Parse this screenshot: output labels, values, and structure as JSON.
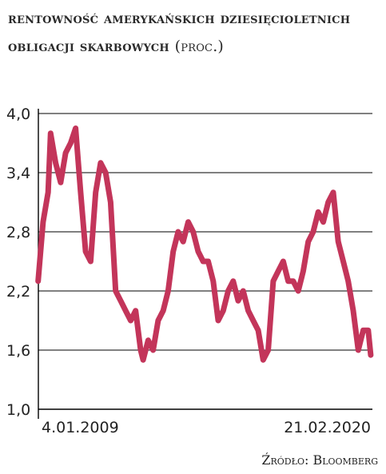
{
  "title_main": "Rentowność amerykańskich dziesięcioletnich obligacji skarbowych",
  "title_unit": "(proc.)",
  "source": "Źródło: Bloomberg",
  "colors": {
    "line": "#c3355a",
    "grid": "#000000",
    "text": "#222222"
  },
  "chart_data": {
    "type": "line",
    "title": "Rentowność amerykańskich dziesięcioletnich obligacji skarbowych (proc.)",
    "xlabel": "",
    "ylabel": "",
    "ylim": [
      1.0,
      4.0
    ],
    "yticks": [
      "4,0",
      "3,4",
      "2,8",
      "2,2",
      "1,6",
      "1,0"
    ],
    "xlim": [
      "2009-01-04",
      "2020-02-21"
    ],
    "xticks": [
      "4.01.2009",
      "21.02.2020"
    ],
    "grid": "horizontal",
    "legend": "none",
    "series": [
      {
        "x": [
          "2009-01",
          "2009-03",
          "2009-05",
          "2009-06",
          "2009-08",
          "2009-10",
          "2009-12",
          "2010-02",
          "2010-04",
          "2010-06",
          "2010-08",
          "2010-10",
          "2010-12",
          "2011-02",
          "2011-04",
          "2011-06",
          "2011-08",
          "2011-10",
          "2011-12",
          "2012-02",
          "2012-04",
          "2012-06",
          "2012-07",
          "2012-09",
          "2012-11",
          "2013-01",
          "2013-03",
          "2013-05",
          "2013-07",
          "2013-09",
          "2013-11",
          "2014-01",
          "2014-03",
          "2014-05",
          "2014-07",
          "2014-09",
          "2014-11",
          "2015-01",
          "2015-03",
          "2015-05",
          "2015-07",
          "2015-09",
          "2015-11",
          "2016-01",
          "2016-03",
          "2016-05",
          "2016-07",
          "2016-09",
          "2016-11",
          "2017-01",
          "2017-03",
          "2017-05",
          "2017-07",
          "2017-09",
          "2017-11",
          "2018-01",
          "2018-03",
          "2018-05",
          "2018-07",
          "2018-09",
          "2018-11",
          "2019-01",
          "2019-03",
          "2019-05",
          "2019-07",
          "2019-09",
          "2019-11",
          "2020-01",
          "2020-02"
        ],
        "values": [
          2.3,
          2.9,
          3.2,
          3.8,
          3.5,
          3.3,
          3.6,
          3.7,
          3.85,
          3.2,
          2.6,
          2.5,
          3.2,
          3.5,
          3.4,
          3.1,
          2.2,
          2.1,
          2.0,
          1.9,
          2.0,
          1.6,
          1.5,
          1.7,
          1.6,
          1.9,
          2.0,
          2.2,
          2.6,
          2.8,
          2.7,
          2.9,
          2.8,
          2.6,
          2.5,
          2.5,
          2.3,
          1.9,
          2.0,
          2.2,
          2.3,
          2.1,
          2.2,
          2.0,
          1.9,
          1.8,
          1.5,
          1.6,
          2.3,
          2.4,
          2.5,
          2.3,
          2.3,
          2.2,
          2.4,
          2.7,
          2.8,
          3.0,
          2.9,
          3.1,
          3.2,
          2.7,
          2.5,
          2.3,
          2.0,
          1.6,
          1.8,
          1.8,
          1.55
        ]
      }
    ]
  }
}
